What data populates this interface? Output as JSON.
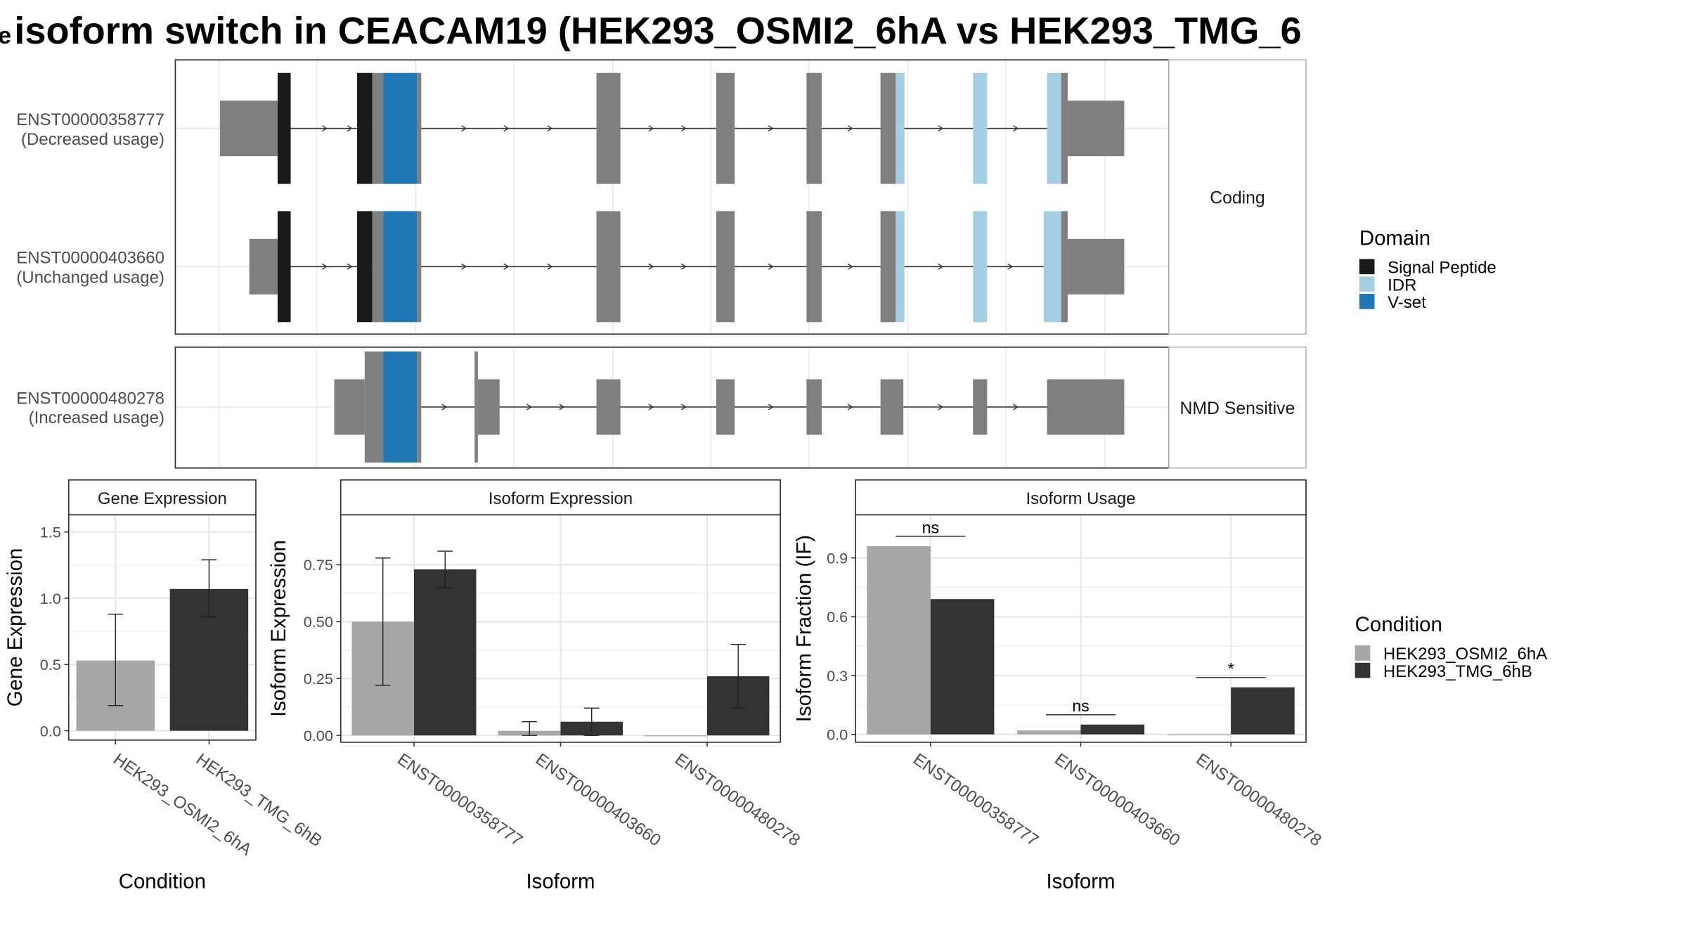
{
  "title": "isoform switch in CEACAM19 (HEK293_OSMI2_6hA vs HEK293_TMG_6",
  "title_lead": "e",
  "structure": {
    "panels": [
      {
        "strip": "Coding",
        "tracks": [
          {
            "id": "ENST00000358777",
            "usage": "(Decreased usage)",
            "segments": [
              {
                "start": 202,
                "end": 255,
                "h": 0.5,
                "c": "grey"
              },
              {
                "start": 255,
                "end": 267,
                "h": 1,
                "c": "sp"
              },
              {
                "start": 328,
                "end": 342,
                "h": 1,
                "c": "sp"
              },
              {
                "start": 342,
                "end": 352,
                "h": 1,
                "c": "grey"
              },
              {
                "start": 352,
                "end": 383,
                "h": 1,
                "c": "vset"
              },
              {
                "start": 383,
                "end": 387,
                "h": 1,
                "c": "grey"
              },
              {
                "start": 548,
                "end": 570,
                "h": 1,
                "c": "grey"
              },
              {
                "start": 658,
                "end": 675,
                "h": 1,
                "c": "grey"
              },
              {
                "start": 741,
                "end": 755,
                "h": 1,
                "c": "grey"
              },
              {
                "start": 809,
                "end": 823,
                "h": 1,
                "c": "grey"
              },
              {
                "start": 823,
                "end": 831,
                "h": 1,
                "c": "idr"
              },
              {
                "start": 894,
                "end": 907,
                "h": 1,
                "c": "idr"
              },
              {
                "start": 962,
                "end": 975,
                "h": 1,
                "c": "idr"
              },
              {
                "start": 975,
                "end": 981,
                "h": 1,
                "c": "grey"
              },
              {
                "start": 981,
                "end": 1033,
                "h": 0.5,
                "c": "grey"
              }
            ],
            "line": [
              267,
              962
            ],
            "arrows": [
              300,
              323,
              428,
              467,
              507,
              600,
              630,
              710,
              783,
              866,
              935
            ]
          },
          {
            "id": "ENST00000403660",
            "usage": "(Unchanged usage)",
            "segments": [
              {
                "start": 229,
                "end": 255,
                "h": 0.5,
                "c": "grey"
              },
              {
                "start": 255,
                "end": 267,
                "h": 1,
                "c": "sp"
              },
              {
                "start": 328,
                "end": 342,
                "h": 1,
                "c": "sp"
              },
              {
                "start": 342,
                "end": 352,
                "h": 1,
                "c": "grey"
              },
              {
                "start": 352,
                "end": 383,
                "h": 1,
                "c": "vset"
              },
              {
                "start": 383,
                "end": 387,
                "h": 1,
                "c": "grey"
              },
              {
                "start": 548,
                "end": 570,
                "h": 1,
                "c": "grey"
              },
              {
                "start": 658,
                "end": 675,
                "h": 1,
                "c": "grey"
              },
              {
                "start": 741,
                "end": 755,
                "h": 1,
                "c": "grey"
              },
              {
                "start": 809,
                "end": 823,
                "h": 1,
                "c": "grey"
              },
              {
                "start": 823,
                "end": 831,
                "h": 1,
                "c": "idr"
              },
              {
                "start": 894,
                "end": 907,
                "h": 1,
                "c": "idr"
              },
              {
                "start": 959,
                "end": 975,
                "h": 1,
                "c": "idr"
              },
              {
                "start": 975,
                "end": 981,
                "h": 1,
                "c": "grey"
              },
              {
                "start": 981,
                "end": 1033,
                "h": 0.5,
                "c": "grey"
              }
            ],
            "line": [
              267,
              959
            ],
            "arrows": [
              300,
              323,
              428,
              467,
              507,
              600,
              630,
              710,
              783,
              866,
              930
            ]
          }
        ]
      },
      {
        "strip": "NMD Sensitive",
        "tracks": [
          {
            "id": "ENST00000480278",
            "usage": "(Increased usage)",
            "segments": [
              {
                "start": 307,
                "end": 335,
                "h": 0.5,
                "c": "grey"
              },
              {
                "start": 335,
                "end": 352,
                "h": 1,
                "c": "grey"
              },
              {
                "start": 352,
                "end": 383,
                "h": 1,
                "c": "vset"
              },
              {
                "start": 383,
                "end": 387,
                "h": 1,
                "c": "grey"
              },
              {
                "start": 436,
                "end": 439,
                "h": 1,
                "c": "grey"
              },
              {
                "start": 439,
                "end": 459,
                "h": 0.5,
                "c": "grey"
              },
              {
                "start": 548,
                "end": 570,
                "h": 0.5,
                "c": "grey"
              },
              {
                "start": 658,
                "end": 675,
                "h": 0.5,
                "c": "grey"
              },
              {
                "start": 741,
                "end": 755,
                "h": 0.5,
                "c": "grey"
              },
              {
                "start": 809,
                "end": 830,
                "h": 0.5,
                "c": "grey"
              },
              {
                "start": 894,
                "end": 907,
                "h": 0.5,
                "c": "grey"
              },
              {
                "start": 962,
                "end": 1033,
                "h": 0.5,
                "c": "grey"
              }
            ],
            "line": [
              387,
              962
            ],
            "arrows": [
              410,
              488,
              518,
              600,
              630,
              710,
              783,
              866,
              935
            ]
          }
        ]
      }
    ]
  },
  "legend_domain": {
    "title": "Domain",
    "items": [
      {
        "label": "Signal Peptide",
        "color": "#1a1a1a"
      },
      {
        "label": "IDR",
        "color": "#a6cee3"
      },
      {
        "label": "V-set",
        "color": "#1f78b4"
      }
    ]
  },
  "legend_condition": {
    "title": "Condition",
    "items": [
      {
        "label": "HEK293_OSMI2_6hA",
        "color": "#a6a6a6"
      },
      {
        "label": "HEK293_TMG_6hB",
        "color": "#333333"
      }
    ]
  },
  "colors": {
    "grey": "#7f7f7f",
    "sp": "#1a1a1a",
    "idr": "#a6cee3",
    "vset": "#1f78b4",
    "cond_a": "#a6a6a6",
    "cond_b": "#333333"
  },
  "chart_data": [
    {
      "type": "bar",
      "title": "Gene Expression",
      "xlabel": "Condition",
      "ylabel": "Gene Expression",
      "categories": [
        "HEK293_OSMI2_6hA",
        "HEK293_TMG_6hB"
      ],
      "ylim": [
        -0.07,
        1.63
      ],
      "yticks": [
        "0.0",
        "0.5",
        "1.0",
        "1.5"
      ],
      "series": [
        {
          "values": [
            0.53,
            1.07
          ],
          "err_low": [
            0.19,
            0.86
          ],
          "err_high": [
            0.88,
            1.29
          ]
        }
      ]
    },
    {
      "type": "bar",
      "title": "Isoform Expression",
      "xlabel": "Isoform",
      "ylabel": "Isoform Expression",
      "categories": [
        "ENST00000358777",
        "ENST00000403660",
        "ENST00000480278"
      ],
      "ylim": [
        -0.03,
        0.97
      ],
      "yticks": [
        "0.00",
        "0.25",
        "0.50",
        "0.75"
      ],
      "series": [
        {
          "name": "HEK293_OSMI2_6hA",
          "values": [
            0.5,
            0.02,
            0.0
          ],
          "err_low": [
            0.22,
            0.0,
            0.0
          ],
          "err_high": [
            0.78,
            0.06,
            0.0
          ]
        },
        {
          "name": "HEK293_TMG_6hB",
          "values": [
            0.73,
            0.06,
            0.26
          ],
          "err_low": [
            0.65,
            0.0,
            0.12
          ],
          "err_high": [
            0.81,
            0.12,
            0.4
          ]
        }
      ]
    },
    {
      "type": "bar",
      "title": "Isoform Usage",
      "xlabel": "Isoform",
      "ylabel": "Isoform Fraction (IF)",
      "categories": [
        "ENST00000358777",
        "ENST00000403660",
        "ENST00000480278"
      ],
      "ylim": [
        -0.04,
        1.12
      ],
      "yticks": [
        "0.0",
        "0.3",
        "0.6",
        "0.9"
      ],
      "series": [
        {
          "name": "HEK293_OSMI2_6hA",
          "values": [
            0.96,
            0.02,
            0.0
          ]
        },
        {
          "name": "HEK293_TMG_6hB",
          "values": [
            0.69,
            0.05,
            0.24
          ]
        }
      ],
      "significance": [
        {
          "label": "ns",
          "y": 1.01
        },
        {
          "label": "ns",
          "y": 0.1
        },
        {
          "label": "*",
          "y": 0.29
        }
      ]
    }
  ]
}
